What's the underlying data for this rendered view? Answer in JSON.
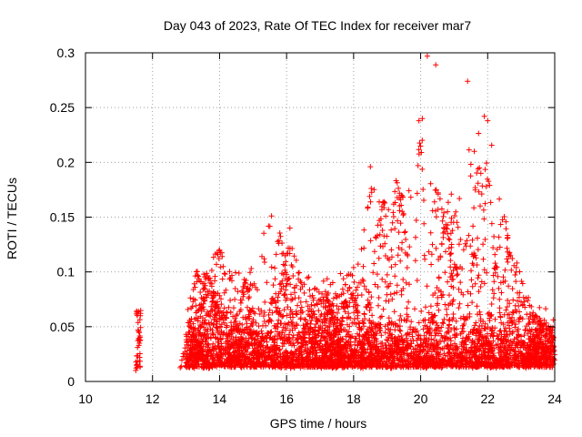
{
  "chart_data": {
    "type": "scatter",
    "title": "Day 043 of 2023, Rate Of TEC Index for receiver mar7",
    "xlabel": "GPS time / hours",
    "ylabel": "ROTI / TECUs",
    "xlim": [
      10,
      24
    ],
    "ylim": [
      0,
      0.3
    ],
    "xticks": [
      10,
      12,
      14,
      16,
      18,
      20,
      22,
      24
    ],
    "yticks": [
      0,
      0.05,
      0.1,
      0.15,
      0.2,
      0.25,
      0.3
    ],
    "xtick_labels": [
      "10",
      "12",
      "14",
      "16",
      "18",
      "20",
      "22",
      "24"
    ],
    "ytick_labels": [
      "0",
      "0.05",
      "0.1",
      "0.15",
      "0.2",
      "0.25",
      "0.3"
    ],
    "grid": true,
    "marker": "+",
    "marker_color": "#ff0000",
    "series": [
      {
        "name": "ROTI",
        "clusters": [
          {
            "x_range": [
              11.5,
              11.65
            ],
            "y_range": [
              0.01,
              0.065
            ],
            "count": 40
          },
          {
            "x_range": [
              13.0,
              24.0
            ],
            "y_range": [
              0.005,
              0.06
            ],
            "count": 2600
          },
          {
            "x_range": [
              13.0,
              24.0
            ],
            "y_range": [
              0.03,
              0.1
            ],
            "count": 700
          }
        ],
        "envelope": [
          [
            13.0,
            0.06
          ],
          [
            13.3,
            0.1
          ],
          [
            14.0,
            0.12
          ],
          [
            14.5,
            0.1
          ],
          [
            15.0,
            0.11
          ],
          [
            15.5,
            0.15
          ],
          [
            16.0,
            0.14
          ],
          [
            16.5,
            0.1
          ],
          [
            17.0,
            0.09
          ],
          [
            17.5,
            0.1
          ],
          [
            18.0,
            0.11
          ],
          [
            18.5,
            0.19
          ],
          [
            19.0,
            0.16
          ],
          [
            19.5,
            0.2
          ],
          [
            20.0,
            0.24
          ],
          [
            20.5,
            0.2
          ],
          [
            21.0,
            0.17
          ],
          [
            21.5,
            0.22
          ],
          [
            22.0,
            0.24
          ],
          [
            22.5,
            0.16
          ],
          [
            23.0,
            0.1
          ],
          [
            23.5,
            0.06
          ],
          [
            24.0,
            0.05
          ]
        ],
        "outliers": [
          [
            20.2,
            0.297
          ],
          [
            20.45,
            0.289
          ],
          [
            21.4,
            0.274
          ],
          [
            21.9,
            0.242
          ],
          [
            22.0,
            0.238
          ],
          [
            19.95,
            0.238
          ],
          [
            20.05,
            0.24
          ],
          [
            18.5,
            0.196
          ],
          [
            15.55,
            0.151
          ],
          [
            16.1,
            0.14
          ],
          [
            14.0,
            0.12
          ],
          [
            21.6,
            0.21
          ]
        ]
      }
    ]
  }
}
